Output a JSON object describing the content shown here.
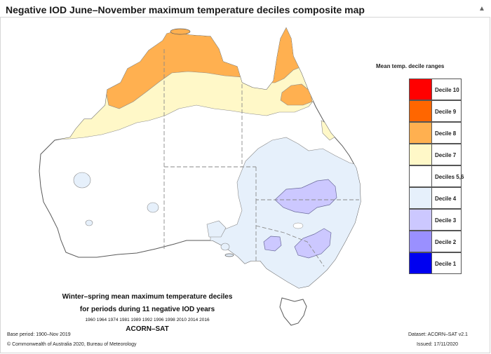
{
  "title": "Negative IOD June–November maximum temperature deciles composite map",
  "scroll_indicator": "chevron-up-icon",
  "legend": {
    "title": "Mean temp. decile ranges",
    "items": [
      {
        "label": "Decile 10",
        "color": "#ff0000"
      },
      {
        "label": "Decile 9",
        "color": "#ff6600"
      },
      {
        "label": "Decile 8",
        "color": "#ffb050"
      },
      {
        "label": "Decile 7",
        "color": "#fff8c8"
      },
      {
        "label": "Deciles 5,6",
        "color": "#ffffff"
      },
      {
        "label": "Decile 4",
        "color": "#e6f0fb"
      },
      {
        "label": "Decile 3",
        "color": "#ccc8ff"
      },
      {
        "label": "Decile 2",
        "color": "#9a90ff"
      },
      {
        "label": "Decile 1",
        "color": "#0000f0"
      }
    ]
  },
  "caption": {
    "line1": "Winter–spring mean maximum temperature deciles",
    "line2": "for periods during 11 negative IOD years",
    "years": "1960 1964 1974 1981 1989 1992 1996 1998 2010 2014 2016",
    "product": "ACORN–SAT"
  },
  "footer": {
    "base_period": "Base period: 1900–Nov 2019",
    "copyright": "© Commonwealth of Australia 2020, Bureau of Meteorology",
    "dataset": "Dataset: ACORN–SAT v2.1",
    "issued": "Issued: 17/11/2020"
  }
}
